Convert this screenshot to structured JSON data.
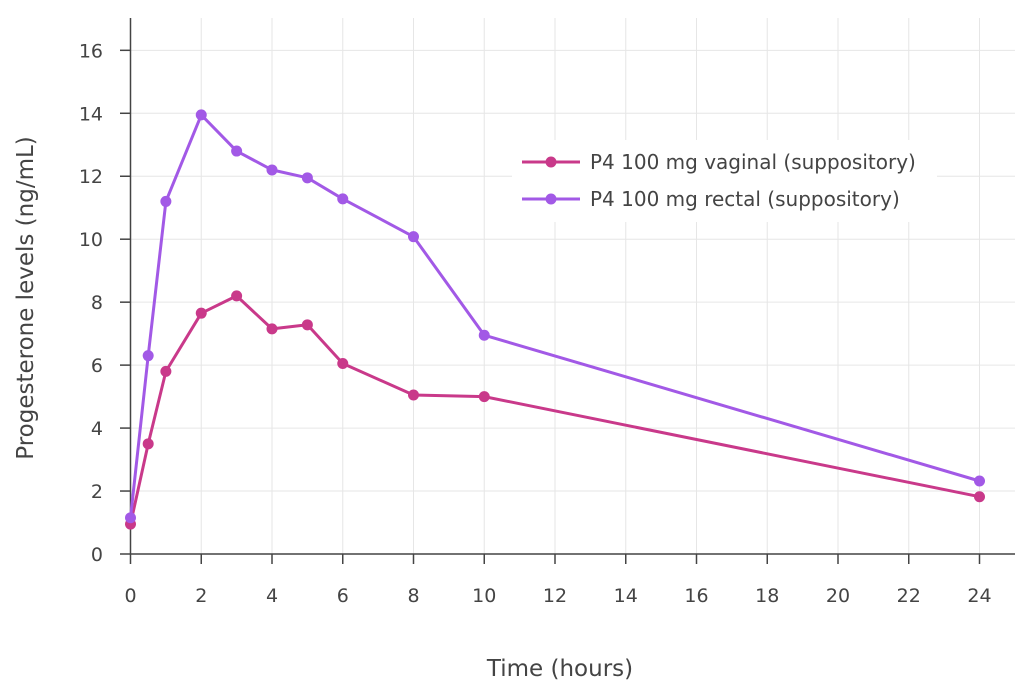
{
  "chart_data": {
    "type": "line",
    "title": "",
    "xlabel": "Time (hours)",
    "ylabel": "Progesterone levels (ng/mL)",
    "xlim": [
      0,
      24
    ],
    "ylim": [
      0,
      16
    ],
    "x_ticks": [
      0,
      2,
      4,
      6,
      8,
      10,
      12,
      14,
      16,
      18,
      20,
      22,
      24
    ],
    "y_ticks": [
      0,
      2,
      4,
      6,
      8,
      10,
      12,
      14,
      16
    ],
    "grid": true,
    "legend_position": "top-right",
    "series": [
      {
        "name": "P4 100 mg vaginal (suppository)",
        "color": "#c9398a",
        "x": [
          0,
          0.5,
          1,
          2,
          3,
          4,
          5,
          6,
          8,
          10,
          24
        ],
        "y": [
          0.95,
          3.5,
          5.8,
          7.65,
          8.2,
          7.15,
          7.28,
          6.05,
          5.05,
          5.0,
          1.82
        ]
      },
      {
        "name": "P4 100 mg rectal (suppository)",
        "color": "#a259e6",
        "x": [
          0,
          0.5,
          1,
          2,
          3,
          4,
          5,
          6,
          8,
          10,
          24
        ],
        "y": [
          1.15,
          6.3,
          11.2,
          13.95,
          12.8,
          12.2,
          11.95,
          11.28,
          10.08,
          6.95,
          2.32
        ]
      }
    ]
  }
}
